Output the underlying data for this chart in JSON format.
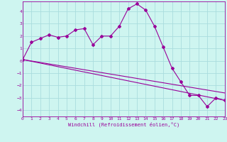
{
  "xlabel": "Windchill (Refroidissement éolien,°C)",
  "background_color": "#cef5f0",
  "line_color": "#990099",
  "grid_color": "#aadddd",
  "xlim": [
    0,
    23
  ],
  "ylim": [
    -4.5,
    4.8
  ],
  "yticks": [
    -4,
    -3,
    -2,
    -1,
    0,
    1,
    2,
    3,
    4
  ],
  "xticks": [
    0,
    1,
    2,
    3,
    4,
    5,
    6,
    7,
    8,
    9,
    10,
    11,
    12,
    13,
    14,
    15,
    16,
    17,
    18,
    19,
    20,
    21,
    22,
    23
  ],
  "main_x": [
    0,
    1,
    2,
    3,
    4,
    5,
    6,
    7,
    8,
    9,
    10,
    11,
    12,
    13,
    14,
    15,
    16,
    17,
    18,
    19,
    20,
    21,
    22,
    23
  ],
  "main_y": [
    0.1,
    1.5,
    1.8,
    2.1,
    1.9,
    2.0,
    2.5,
    2.6,
    1.3,
    2.0,
    2.0,
    2.8,
    4.2,
    4.6,
    4.1,
    2.8,
    1.1,
    -0.6,
    -1.7,
    -2.8,
    -2.8,
    -3.7,
    -3.0,
    -3.2
  ],
  "line1_x": [
    0,
    23
  ],
  "line1_y": [
    0.1,
    -3.2
  ],
  "line2_x": [
    0,
    23
  ],
  "line2_y": [
    0.1,
    -2.6
  ],
  "tick_fontsize": 4.5,
  "xlabel_fontsize": 5.0
}
